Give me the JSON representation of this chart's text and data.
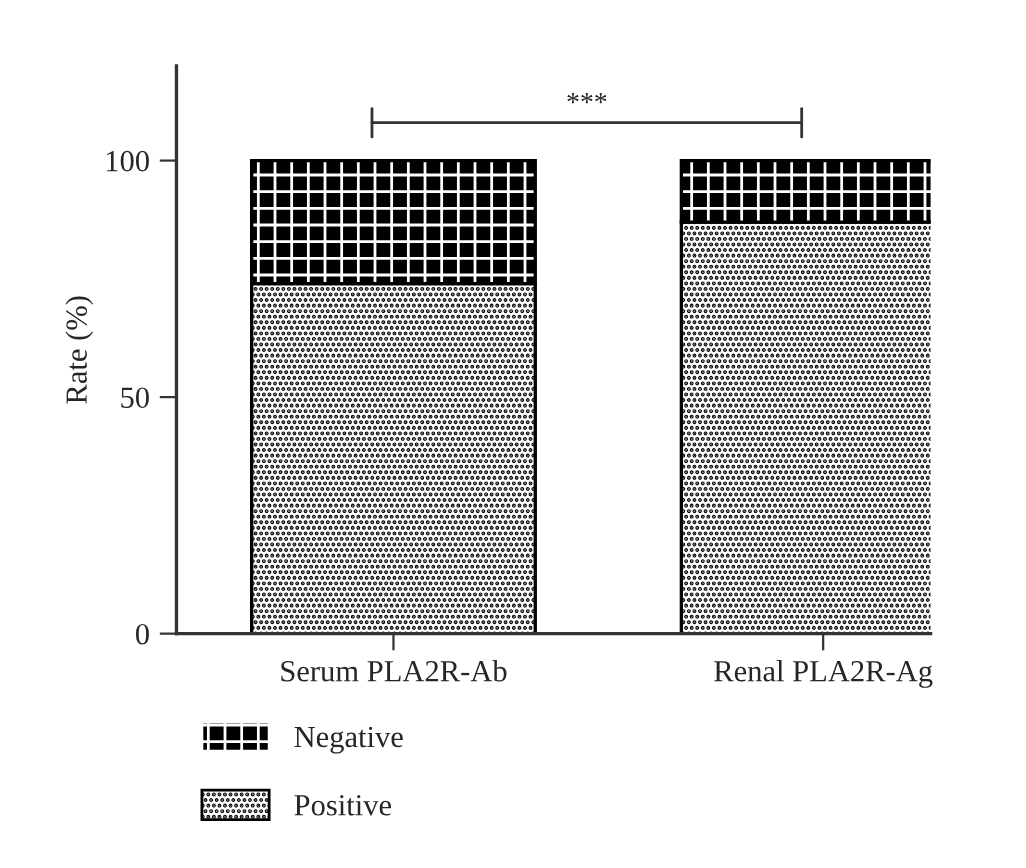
{
  "chart_data": {
    "type": "bar",
    "stacked": true,
    "ylabel": "Rate (%)",
    "categories": [
      "Serum PLA2R-Ab",
      "Renal PLA2R-Ag"
    ],
    "series": [
      {
        "name": "Positive",
        "color": "#ffffff",
        "values": [
          74,
          87
        ]
      },
      {
        "name": "Negative",
        "color": "#000000",
        "values": [
          26,
          13
        ]
      }
    ],
    "ylim": [
      0,
      120
    ],
    "yticks": [
      0,
      50,
      100
    ],
    "grid": false,
    "legend": "bottom left",
    "annotations": [
      "***"
    ]
  }
}
